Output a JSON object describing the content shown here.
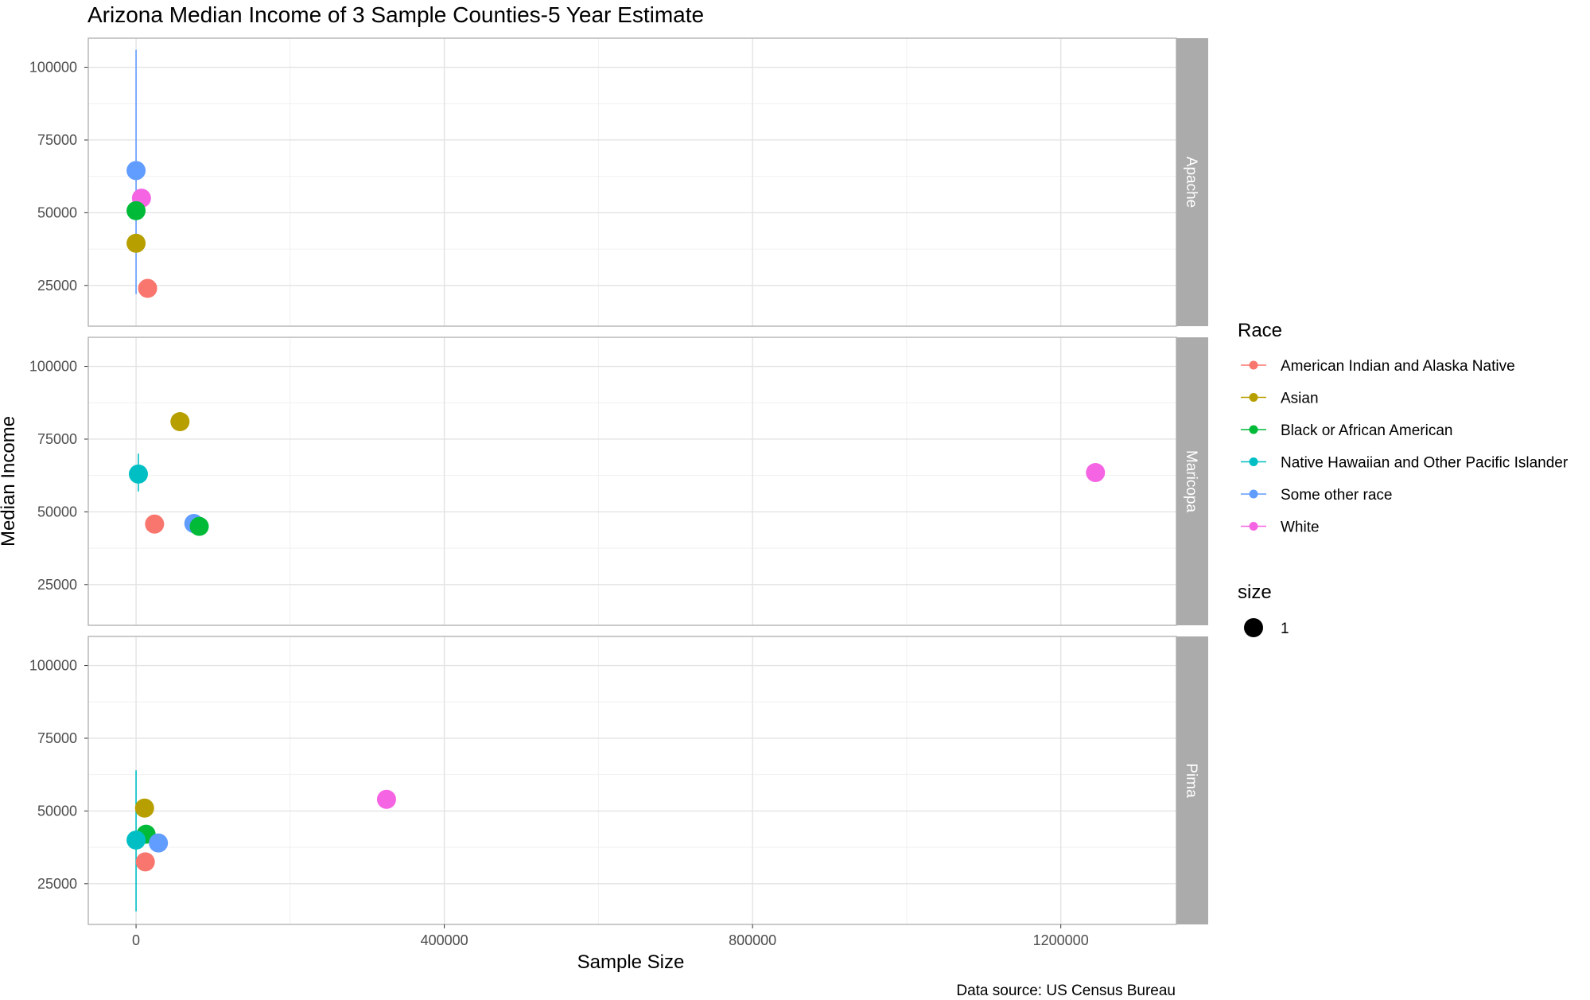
{
  "chart_data": {
    "type": "scatter",
    "title": "Arizona Median Income of 3 Sample Counties-5 Year Estimate",
    "xlabel": "Sample Size",
    "ylabel": "Median Income",
    "caption": "Data source: US Census Bureau",
    "xlim": [
      -62000,
      1350000
    ],
    "ylim": [
      11000,
      110000
    ],
    "x_ticks": [
      0,
      400000,
      800000,
      1200000
    ],
    "x_minor_ticks": [
      200000,
      600000,
      1000000
    ],
    "y_ticks": [
      25000,
      50000,
      75000,
      100000
    ],
    "y_minor_ticks": [
      37500,
      62500,
      87500
    ],
    "grid": true,
    "legend_position": "right",
    "facets": [
      "Apache",
      "Maricopa",
      "Pima"
    ],
    "legend_color": {
      "title": "Race",
      "entries": [
        {
          "name": "American Indian and Alaska Native",
          "color": "#F8766D"
        },
        {
          "name": "Asian",
          "color": "#B79F00"
        },
        {
          "name": "Black or African American",
          "color": "#00BA38"
        },
        {
          "name": "Native Hawaiian and Other Pacific Islander",
          "color": "#00BFC4"
        },
        {
          "name": "Some other race",
          "color": "#619CFF"
        },
        {
          "name": "White",
          "color": "#F564E3"
        }
      ]
    },
    "legend_size": {
      "title": "size",
      "entries": [
        {
          "label": "1"
        }
      ]
    },
    "panels": [
      {
        "facet": "Apache",
        "points": [
          {
            "race": "Some other race",
            "x": 0,
            "y": 64500
          },
          {
            "race": "White",
            "x": 7000,
            "y": 55000
          },
          {
            "race": "Black or African American",
            "x": 0,
            "y": 50700
          },
          {
            "race": "Asian",
            "x": 0,
            "y": 39500
          },
          {
            "race": "American Indian and Alaska Native",
            "x": 15000,
            "y": 24000
          }
        ],
        "error_bars": [
          {
            "race": "Some other race",
            "x": 0,
            "ymin": 22000,
            "ymax": 106000
          }
        ]
      },
      {
        "facet": "Maricopa",
        "points": [
          {
            "race": "Asian",
            "x": 57000,
            "y": 81000
          },
          {
            "race": "Native Hawaiian and Other Pacific Islander",
            "x": 3000,
            "y": 63000
          },
          {
            "race": "White",
            "x": 1245000,
            "y": 63500
          },
          {
            "race": "Some other race",
            "x": 75000,
            "y": 46000
          },
          {
            "race": "Black or African American",
            "x": 82000,
            "y": 45000
          },
          {
            "race": "American Indian and Alaska Native",
            "x": 24000,
            "y": 45800
          }
        ],
        "error_bars": [
          {
            "race": "Native Hawaiian and Other Pacific Islander",
            "x": 3000,
            "ymin": 57000,
            "ymax": 70000
          }
        ]
      },
      {
        "facet": "Pima",
        "points": [
          {
            "race": "White",
            "x": 325000,
            "y": 54000
          },
          {
            "race": "Asian",
            "x": 11000,
            "y": 51000
          },
          {
            "race": "Black or African American",
            "x": 13000,
            "y": 42000
          },
          {
            "race": "Native Hawaiian and Other Pacific Islander",
            "x": 0,
            "y": 40000
          },
          {
            "race": "Some other race",
            "x": 29000,
            "y": 39000
          },
          {
            "race": "American Indian and Alaska Native",
            "x": 12000,
            "y": 32500
          }
        ],
        "error_bars": [
          {
            "race": "Native Hawaiian and Other Pacific Islander",
            "x": 0,
            "ymin": 15500,
            "ymax": 64000
          }
        ]
      }
    ]
  }
}
